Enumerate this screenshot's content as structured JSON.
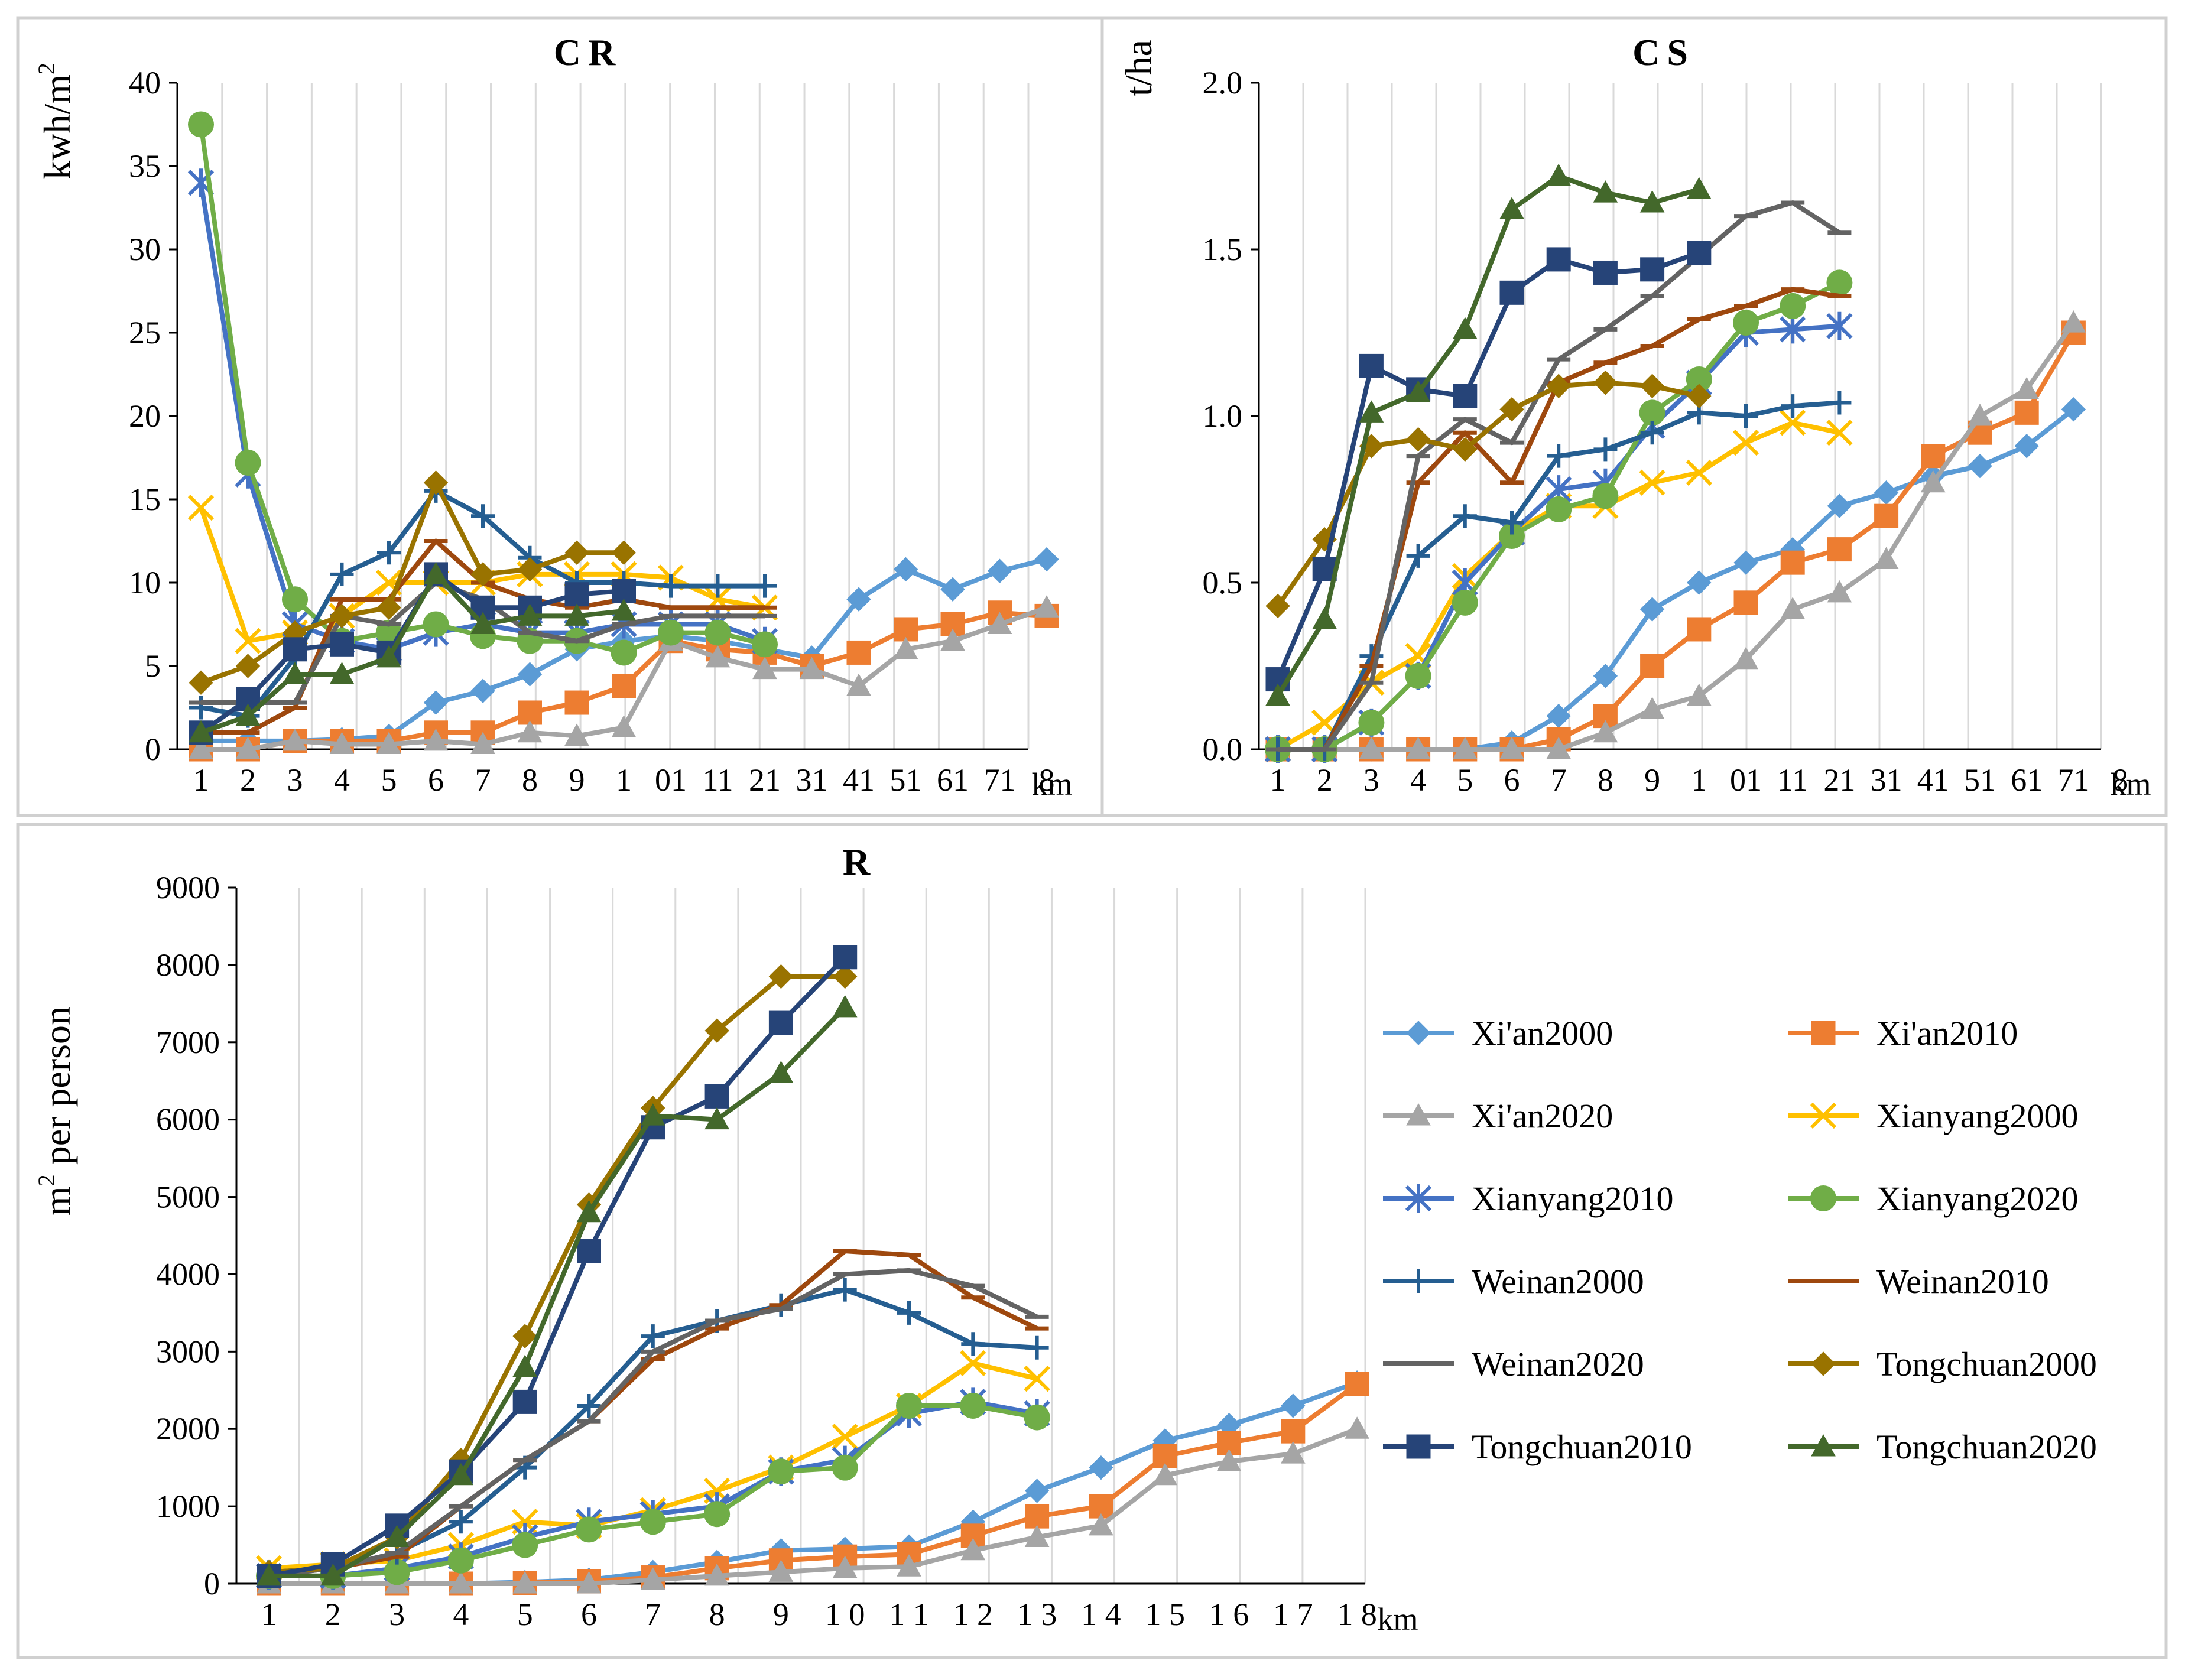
{
  "chart_data": {
    "type": "line",
    "x_unit": "km",
    "colors": {
      "Xi'an2000": "#5B9BD5",
      "Xi'an2010": "#ED7D31",
      "Xi'an2020": "#A5A5A5",
      "Xianyang2000": "#FFC000",
      "Xianyang2010": "#4472C4",
      "Xianyang2020": "#70AD47",
      "Weinan2000": "#255E91",
      "Weinan2010": "#9E480E",
      "Weinan2020": "#636363",
      "Tongchuan2000": "#997300",
      "Tongchuan2010": "#264478",
      "Tongchuan2020": "#43682B"
    },
    "markers": {
      "Xi'an2000": "diamond",
      "Xi'an2010": "square",
      "Xi'an2020": "triangle",
      "Xianyang2000": "x",
      "Xianyang2010": "star",
      "Xianyang2020": "circle",
      "Weinan2000": "plus",
      "Weinan2010": "dash",
      "Weinan2020": "dash",
      "Tongchuan2000": "diamond",
      "Tongchuan2010": "square",
      "Tongchuan2020": "triangle"
    },
    "legend": {
      "entries": [
        "Xi'an2000",
        "Xi'an2010",
        "Xi'an2020",
        "Xianyang2000",
        "Xianyang2010",
        "Xianyang2020",
        "Weinan2000",
        "Weinan2010",
        "Weinan2020",
        "Tongchuan2000",
        "Tongchuan2010",
        "Tongchuan2020"
      ],
      "placement": "right of R panel"
    },
    "panels": [
      {
        "id": "CR",
        "title": "CR",
        "ylabel": "kwh/m²",
        "ylabel_base": "kwh/m",
        "ylabel_sup": "2",
        "xlabel": "km",
        "ylim": [
          0,
          40
        ],
        "yticks": [
          "0",
          "5",
          "10",
          "15",
          "20",
          "25",
          "30",
          "35",
          "40"
        ],
        "xtick_labels": [
          "1",
          "2",
          "3",
          "4",
          "5",
          "6",
          "7",
          "8",
          "9",
          "1",
          "01",
          "11",
          "21",
          "31",
          "41",
          "51",
          "61",
          "71",
          "8"
        ],
        "series": [
          {
            "name": "Xi'an2000",
            "values": [
              0.5,
              0.5,
              0.5,
              0.6,
              0.8,
              2.8,
              3.5,
              4.5,
              6,
              6.5,
              6.8,
              6.5,
              6,
              5.5,
              9,
              10.8,
              9.6,
              10.7,
              11.4
            ]
          },
          {
            "name": "Xi'an2010",
            "values": [
              0,
              0,
              0.5,
              0.5,
              0.5,
              1,
              1,
              2.2,
              2.8,
              3.8,
              6.5,
              6,
              5.8,
              5,
              5.8,
              7.2,
              7.5,
              8.2,
              8
            ]
          },
          {
            "name": "Xi'an2020",
            "values": [
              0,
              0,
              0.5,
              0.3,
              0.3,
              0.5,
              0.3,
              1,
              0.8,
              1.3,
              6.5,
              5.5,
              4.8,
              4.8,
              3.8,
              6,
              6.5,
              7.5,
              8.5
            ]
          },
          {
            "name": "Xianyang2000",
            "values": [
              14.5,
              6.5,
              7,
              8,
              10,
              10,
              10,
              10.5,
              10.5,
              10.5,
              10.3,
              9,
              8.5
            ]
          },
          {
            "name": "Xianyang2010",
            "values": [
              34,
              16.5,
              7.5,
              6.5,
              6,
              7,
              7.5,
              7,
              7,
              7.5,
              7.5,
              7.5,
              6.5
            ]
          },
          {
            "name": "Xianyang2020",
            "values": [
              37.5,
              17.2,
              9,
              6.5,
              7,
              7.5,
              6.8,
              6.5,
              6.5,
              5.8,
              7,
              7,
              6.3
            ]
          },
          {
            "name": "Weinan2000",
            "values": [
              2.5,
              2,
              5.5,
              10.5,
              11.8,
              15.5,
              14,
              11.5,
              10,
              10,
              9.8,
              9.8,
              9.8
            ]
          },
          {
            "name": "Weinan2010",
            "values": [
              1,
              1,
              2.5,
              9,
              9,
              12.5,
              10,
              9,
              8.5,
              9,
              8.5,
              8.5,
              8.5
            ]
          },
          {
            "name": "Weinan2020",
            "values": [
              2.8,
              2.8,
              2.8,
              8,
              7.5,
              10,
              9,
              7,
              6.5,
              7.5,
              8,
              8,
              8
            ]
          },
          {
            "name": "Tongchuan2000",
            "values": [
              4,
              5,
              7,
              8,
              8.5,
              16,
              10.5,
              10.8,
              11.8,
              11.8
            ]
          },
          {
            "name": "Tongchuan2010",
            "values": [
              1,
              3,
              6,
              6.3,
              5.8,
              10.5,
              8.5,
              8.5,
              9.3,
              9.5
            ]
          },
          {
            "name": "Tongchuan2020",
            "values": [
              1,
              2,
              4.5,
              4.5,
              5.5,
              10.5,
              7.5,
              8,
              8,
              8.3
            ]
          }
        ]
      },
      {
        "id": "CS",
        "title": "CS",
        "ylabel": "t/ha",
        "xlabel": "km",
        "ylim": [
          0,
          2
        ],
        "yticks": [
          "0.0",
          "0.5",
          "1.0",
          "1.5",
          "2.0"
        ],
        "xtick_labels": [
          "1",
          "2",
          "3",
          "4",
          "5",
          "6",
          "7",
          "8",
          "9",
          "1",
          "01",
          "11",
          "21",
          "31",
          "41",
          "51",
          "61",
          "71",
          "8"
        ],
        "series": [
          {
            "name": "Xi'an2000",
            "values": [
              0,
              0,
              0,
              0,
              0,
              0.02,
              0.1,
              0.22,
              0.42,
              0.5,
              0.56,
              0.6,
              0.73,
              0.77,
              0.82,
              0.85,
              0.91,
              1.02
            ]
          },
          {
            "name": "Xi'an2010",
            "values": [
              0,
              0,
              0,
              0,
              0,
              0,
              0.03,
              0.1,
              0.25,
              0.36,
              0.44,
              0.56,
              0.6,
              0.7,
              0.88,
              0.95,
              1.01,
              1.25
            ]
          },
          {
            "name": "Xi'an2020",
            "values": [
              0,
              0,
              0,
              0,
              0,
              0,
              0,
              0.05,
              0.12,
              0.16,
              0.27,
              0.42,
              0.47,
              0.57,
              0.8,
              1,
              1.08,
              1.28
            ]
          },
          {
            "name": "Xianyang2000",
            "values": [
              0,
              0.08,
              0.2,
              0.28,
              0.52,
              0.65,
              0.73,
              0.73,
              0.8,
              0.83,
              0.92,
              0.98,
              0.95
            ]
          },
          {
            "name": "Xianyang2010",
            "values": [
              0,
              0,
              0.08,
              0.22,
              0.5,
              0.65,
              0.78,
              0.8,
              0.97,
              1.1,
              1.25,
              1.26,
              1.27
            ]
          },
          {
            "name": "Xianyang2020",
            "values": [
              0,
              0,
              0.08,
              0.22,
              0.44,
              0.64,
              0.72,
              0.76,
              1.01,
              1.11,
              1.28,
              1.33,
              1.4
            ]
          },
          {
            "name": "Weinan2000",
            "values": [
              0,
              0,
              0.28,
              0.58,
              0.7,
              0.68,
              0.88,
              0.9,
              0.95,
              1.01,
              1,
              1.03,
              1.04
            ]
          },
          {
            "name": "Weinan2010",
            "values": [
              0,
              0,
              0.25,
              0.8,
              0.95,
              0.8,
              1.1,
              1.16,
              1.21,
              1.29,
              1.33,
              1.38,
              1.36
            ]
          },
          {
            "name": "Weinan2020",
            "values": [
              0,
              0,
              0.2,
              0.88,
              0.99,
              0.92,
              1.17,
              1.26,
              1.36,
              1.48,
              1.6,
              1.64,
              1.55
            ]
          },
          {
            "name": "Tongchuan2000",
            "values": [
              0.43,
              0.63,
              0.91,
              0.93,
              0.9,
              1.02,
              1.09,
              1.1,
              1.09,
              1.06
            ]
          },
          {
            "name": "Tongchuan2010",
            "values": [
              0.21,
              0.54,
              1.15,
              1.08,
              1.06,
              1.37,
              1.47,
              1.43,
              1.44,
              1.49
            ]
          },
          {
            "name": "Tongchuan2020",
            "values": [
              0.16,
              0.39,
              1.01,
              1.07,
              1.26,
              1.62,
              1.72,
              1.67,
              1.64,
              1.68
            ]
          }
        ]
      },
      {
        "id": "R",
        "title": "R",
        "ylabel": "m² per person",
        "ylabel_base": "m",
        "ylabel_sup": "2",
        "ylabel_rest": " per person",
        "xlabel": "km",
        "ylim": [
          0,
          9000
        ],
        "yticks": [
          "0",
          "1000",
          "2000",
          "3000",
          "4000",
          "5000",
          "6000",
          "7000",
          "8000",
          "9000"
        ],
        "xtick_labels": [
          "1",
          "2",
          "3",
          "4",
          "5",
          "6",
          "7",
          "8",
          "9",
          "1 0",
          "1 1",
          "1 2",
          "1 3",
          "1 4",
          "1 5",
          "1 6",
          "1 7",
          "1 8"
        ],
        "series": [
          {
            "name": "Xi'an2000",
            "values": [
              0,
              0,
              0,
              0,
              20,
              50,
              150,
              280,
              430,
              450,
              480,
              800,
              1200,
              1500,
              1850,
              2050,
              2300,
              2600
            ]
          },
          {
            "name": "Xi'an2010",
            "values": [
              0,
              0,
              0,
              0,
              10,
              30,
              80,
              200,
              300,
              350,
              380,
              620,
              870,
              1000,
              1650,
              1820,
              1970,
              2580
            ]
          },
          {
            "name": "Xi'an2020",
            "values": [
              0,
              0,
              0,
              0,
              0,
              0,
              50,
              100,
              150,
              200,
              220,
              430,
              600,
              750,
              1400,
              1580,
              1680,
              2000
            ]
          },
          {
            "name": "Xianyang2000",
            "values": [
              200,
              250,
              300,
              500,
              800,
              750,
              950,
              1200,
              1500,
              1900,
              2300,
              2850,
              2650
            ]
          },
          {
            "name": "Xianyang2010",
            "values": [
              100,
              100,
              200,
              350,
              600,
              800,
              900,
              1000,
              1450,
              1600,
              2200,
              2350,
              2200
            ]
          },
          {
            "name": "Xianyang2020",
            "values": [
              100,
              100,
              150,
              300,
              500,
              700,
              800,
              900,
              1450,
              1500,
              2300,
              2300,
              2150
            ]
          },
          {
            "name": "Weinan2000",
            "values": [
              150,
              200,
              400,
              800,
              1500,
              2300,
              3200,
              3400,
              3600,
              3800,
              3500,
              3100,
              3050
            ]
          },
          {
            "name": "Weinan2010",
            "values": [
              100,
              200,
              350,
              1000,
              1600,
              2100,
              2900,
              3300,
              3600,
              4300,
              4250,
              3700,
              3300
            ]
          },
          {
            "name": "Weinan2020",
            "values": [
              100,
              200,
              400,
              1000,
              1600,
              2100,
              3000,
              3400,
              3550,
              4000,
              4050,
              3850,
              3450
            ]
          },
          {
            "name": "Tongchuan2000",
            "values": [
              150,
              200,
              600,
              1600,
              3200,
              4900,
              6150,
              7150,
              7850,
              7850
            ]
          },
          {
            "name": "Tongchuan2010",
            "values": [
              100,
              250,
              750,
              1450,
              2350,
              4300,
              5900,
              6300,
              7250,
              8100
            ]
          },
          {
            "name": "Tongchuan2020",
            "values": [
              100,
              100,
              600,
              1400,
              2800,
              4800,
              6050,
              6000,
              6600,
              7450
            ]
          }
        ]
      }
    ]
  }
}
